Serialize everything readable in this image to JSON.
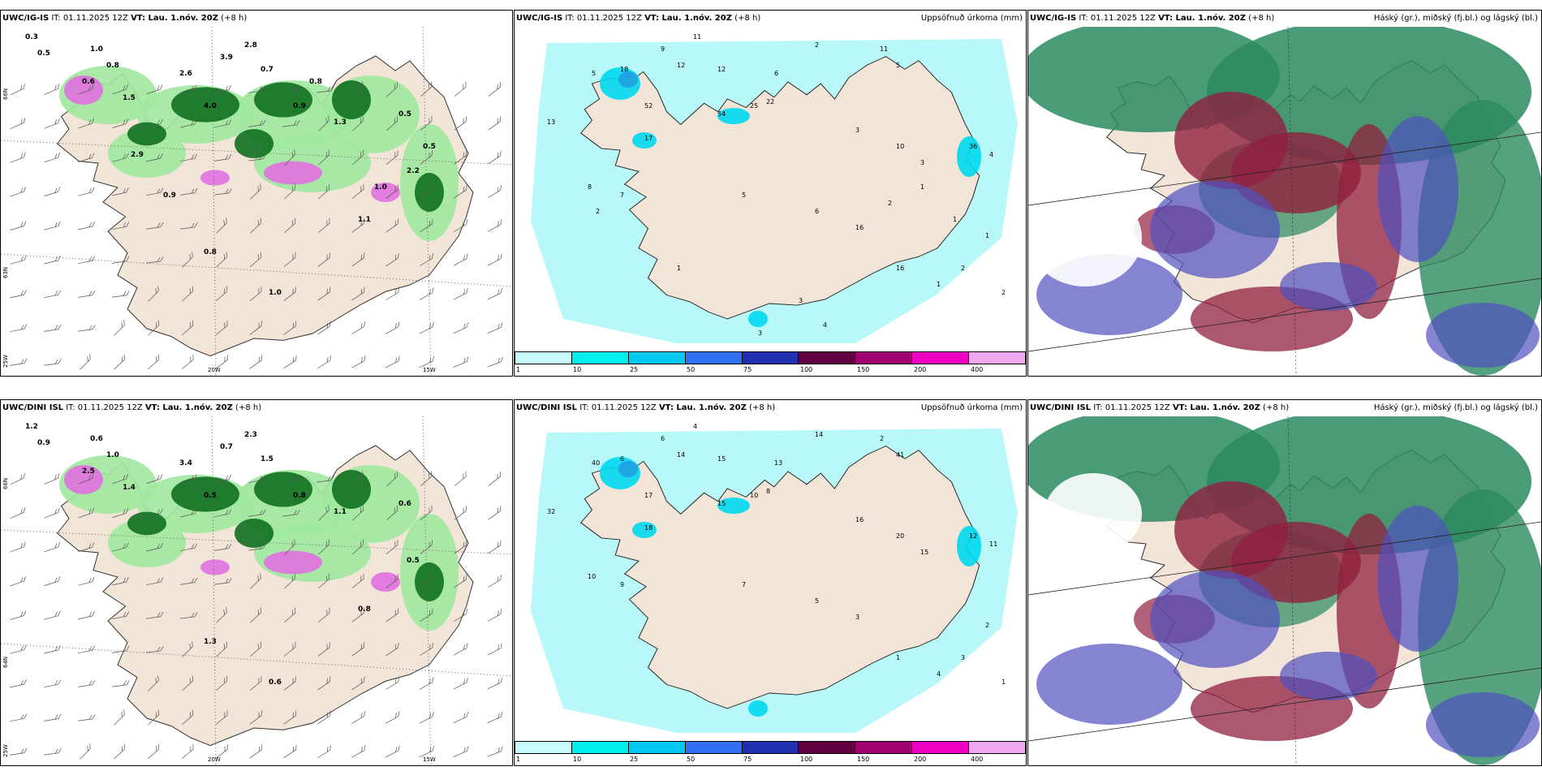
{
  "panels": [
    {
      "model": "UWC/IG-IS",
      "it": "IT: 01.11.2025 12Z",
      "vt": "VT: Lau. 1.nóv. 20Z",
      "step": "(+8 h)",
      "right_title": ""
    },
    {
      "model": "UWC/IG-IS",
      "it": "IT: 01.11.2025 12Z",
      "vt": "VT: Lau. 1.nóv. 20Z",
      "step": "(+8 h)",
      "right_title": "Uppsöfnuð úrkoma (mm)"
    },
    {
      "model": "UWC/IG-IS",
      "it": "IT: 01.11.2025 12Z",
      "vt": "VT: Lau. 1.nóv. 20Z",
      "step": "(+8 h)",
      "right_title": "Háský (gr.), miðský (fj.bl.) og lágský (bl.)"
    },
    {
      "model": "UWC/DINI ISL",
      "it": "IT: 01.11.2025 12Z",
      "vt": "VT: Lau. 1.nóv. 20Z",
      "step": "(+8 h)",
      "right_title": ""
    },
    {
      "model": "UWC/DINI ISL",
      "it": "IT: 01.11.2025 12Z",
      "vt": "VT: Lau. 1.nóv. 20Z",
      "step": "(+8 h)",
      "right_title": "Uppsöfnuð úrkoma (mm)"
    },
    {
      "model": "UWC/DINI ISL",
      "it": "IT: 01.11.2025 12Z",
      "vt": "VT: Lau. 1.nóv. 20Z",
      "step": "(+8 h)",
      "right_title": "Háský (gr.), miðský (fj.bl.) og lágský (bl.)"
    }
  ],
  "axis_labels": {
    "lon_20": "20W",
    "lon_15": "15W",
    "lat_64": "64N",
    "lat_66": "66N",
    "lat_63": "63N",
    "lon_25": "25W"
  },
  "colorbar": {
    "labels": [
      "1",
      "10",
      "25",
      "50",
      "75",
      "100",
      "150",
      "200",
      "400"
    ],
    "colors": [
      "#c6fcfc",
      "#00f0f0",
      "#00c8f0",
      "#3070f0",
      "#2030b0",
      "#600040",
      "#a00070",
      "#f000c0",
      "#f0a8f0"
    ]
  },
  "colors": {
    "land": "#f2e4d6",
    "sea_precip": "#b8f8f8",
    "green_light": "#a0e8a0",
    "green_dark": "#107020",
    "pink": "#e070e0",
    "cloud_green": "#2a8a60",
    "cloud_red": "#902040",
    "cloud_blue": "#5050c0"
  },
  "labels_ig_precip": [
    "11",
    "9",
    "12",
    "12",
    "6",
    "2",
    "11",
    "5",
    "5",
    "18",
    "52",
    "54",
    "25",
    "22",
    "13",
    "17",
    "3",
    "10",
    "3",
    "36",
    "4",
    "8",
    "7",
    "5",
    "6",
    "16",
    "16",
    "1",
    "2",
    "1",
    "2",
    "3",
    "4",
    "3",
    "1",
    "2",
    "1",
    "1",
    "2"
  ],
  "labels_dini_precip": [
    "4",
    "6",
    "14",
    "15",
    "13",
    "14",
    "2",
    "41",
    "40",
    "6",
    "17",
    "15",
    "10",
    "8",
    "32",
    "18",
    "16",
    "20",
    "15",
    "12",
    "11",
    "10",
    "9",
    "7",
    "5",
    "3",
    "1",
    "4",
    "3",
    "2",
    "1"
  ],
  "labels_ig_wind": [
    "0.3",
    "0.5",
    "1.0",
    "0.8",
    "0.6",
    "1.5",
    "2.6",
    "3.9",
    "2.8",
    "4.0",
    "0.7",
    "0.9",
    "1.3",
    "0.5",
    "2.2",
    "1.1",
    "0.8",
    "1.0",
    "0.9",
    "2.9",
    "0.8",
    "1.0",
    "0.5"
  ],
  "labels_dini_wind": [
    "1.2",
    "0.9",
    "0.6",
    "1.0",
    "2.5",
    "1.4",
    "3.4",
    "0.7",
    "2.3",
    "0.5",
    "1.5",
    "0.8",
    "1.1",
    "0.6",
    "0.5",
    "0.8",
    "1.3",
    "0.6"
  ]
}
